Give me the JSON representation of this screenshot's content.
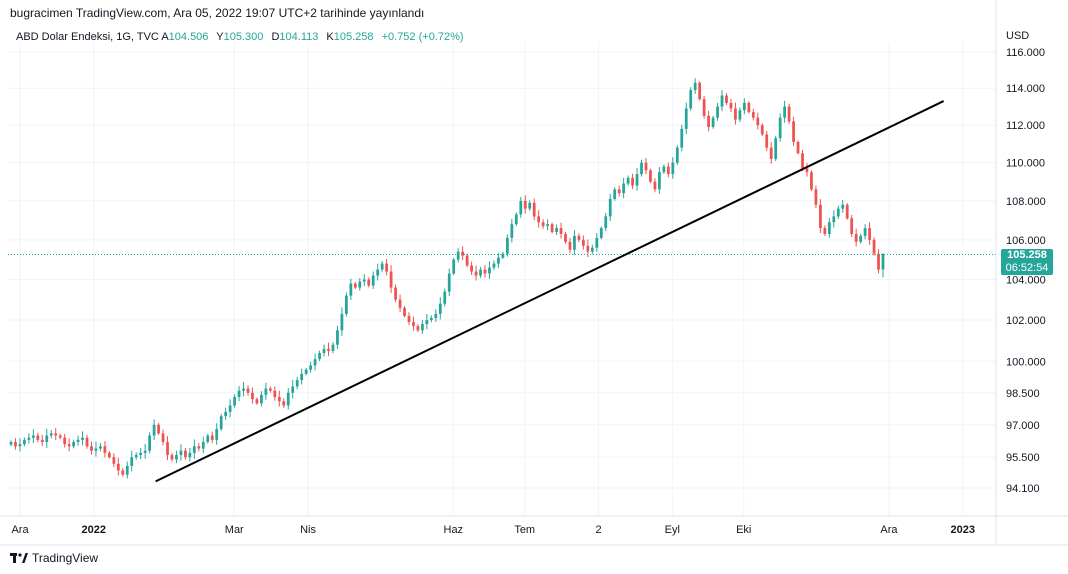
{
  "header": {
    "published": "bugracimen TradingView.com, Ara 05, 2022 19:07 UTC+2 tarihinde yayınlandı"
  },
  "legend": {
    "symbol": "ABD Dolar Endeksi, 1G, TVC",
    "open_label": "A",
    "open": "104.506",
    "high_label": "Y",
    "high": "105.300",
    "low_label": "D",
    "low": "104.113",
    "close_label": "K",
    "close": "105.258",
    "change": "+0.752 (+0.72%)"
  },
  "axis": {
    "currency": "USD",
    "y_ticks": [
      "116.000",
      "114.000",
      "112.000",
      "110.000",
      "108.000",
      "106.000",
      "104.000",
      "102.000",
      "100.000",
      "98.500",
      "97.000",
      "95.500",
      "94.100"
    ],
    "x_ticks": [
      "Ara",
      "2022",
      "Mar",
      "Nis",
      "Haz",
      "Tem",
      "2",
      "Eyl",
      "Eki",
      "Ara",
      "2023"
    ],
    "x_ticks_bold": [
      "2022",
      "2023"
    ]
  },
  "price_badge": {
    "price": "105.258",
    "timer": "06:52:54"
  },
  "colors": {
    "up": "#26a69a",
    "down": "#ef5350",
    "trendline": "#000000",
    "grid": "#f0f3fa",
    "badge": "#26a69a"
  },
  "footer": {
    "brand": "TradingView",
    "logo_icon": "tradingview-logo-icon"
  },
  "chart_data": {
    "type": "candlestick",
    "symbol": "ABD Dolar Endeksi",
    "interval": "1G",
    "y_scale": "log",
    "ylim": [
      93.5,
      117.0
    ],
    "x_range": [
      "2021-12-01",
      "2023-01-20"
    ],
    "last": {
      "open": 104.506,
      "high": 105.3,
      "low": 104.113,
      "close": 105.258,
      "change": 0.752,
      "change_pct": 0.72
    },
    "trendline": {
      "start": {
        "date": "2022-02-01",
        "value": 94.4
      },
      "end": {
        "date": "2022-12-29",
        "value": 113.3
      }
    },
    "closes": [
      96.2,
      96.0,
      96.1,
      96.3,
      96.4,
      96.5,
      96.3,
      96.2,
      96.5,
      96.6,
      96.5,
      96.4,
      96.1,
      96.0,
      96.2,
      96.3,
      96.4,
      96.0,
      95.8,
      95.9,
      96.0,
      95.7,
      95.5,
      95.2,
      94.9,
      94.7,
      95.1,
      95.5,
      95.6,
      95.7,
      95.8,
      96.5,
      97.0,
      96.6,
      96.2,
      95.6,
      95.4,
      95.6,
      95.8,
      95.5,
      95.7,
      96.0,
      95.9,
      96.2,
      96.5,
      96.3,
      96.8,
      97.4,
      97.6,
      97.9,
      98.3,
      98.6,
      98.7,
      98.5,
      98.2,
      98.0,
      98.4,
      98.7,
      98.6,
      98.3,
      98.1,
      97.9,
      98.5,
      98.8,
      99.1,
      99.4,
      99.6,
      99.8,
      100.1,
      100.4,
      100.6,
      100.5,
      100.8,
      101.5,
      102.3,
      103.2,
      103.8,
      103.6,
      103.9,
      104.0,
      103.7,
      104.2,
      104.5,
      104.8,
      104.4,
      103.6,
      103.0,
      102.6,
      102.2,
      101.9,
      101.7,
      101.5,
      101.8,
      102.0,
      102.1,
      102.3,
      102.8,
      103.4,
      104.3,
      105.0,
      105.4,
      105.2,
      104.7,
      104.4,
      104.2,
      104.5,
      104.3,
      104.6,
      104.8,
      105.1,
      105.3,
      106.1,
      106.8,
      107.3,
      108.0,
      107.6,
      107.9,
      107.2,
      106.9,
      106.7,
      106.8,
      106.4,
      106.6,
      106.3,
      105.9,
      105.5,
      106.2,
      106.0,
      105.7,
      105.4,
      105.6,
      106.1,
      106.6,
      107.2,
      108.1,
      108.6,
      108.4,
      108.9,
      109.2,
      108.8,
      109.4,
      110.0,
      109.6,
      109.0,
      108.6,
      109.5,
      109.8,
      109.4,
      110.0,
      110.8,
      111.8,
      112.9,
      113.9,
      114.3,
      113.4,
      112.5,
      111.9,
      112.4,
      113.0,
      113.6,
      113.2,
      112.9,
      112.3,
      112.8,
      113.2,
      112.7,
      112.4,
      112.0,
      111.5,
      110.8,
      110.2,
      111.3,
      112.4,
      113.0,
      112.2,
      111.1,
      110.5,
      109.7,
      109.5,
      108.6,
      107.8,
      106.6,
      106.3,
      106.9,
      107.2,
      107.6,
      107.8,
      107.1,
      106.3,
      105.9,
      106.2,
      106.6,
      106.0,
      105.3,
      104.5,
      105.3
    ]
  }
}
